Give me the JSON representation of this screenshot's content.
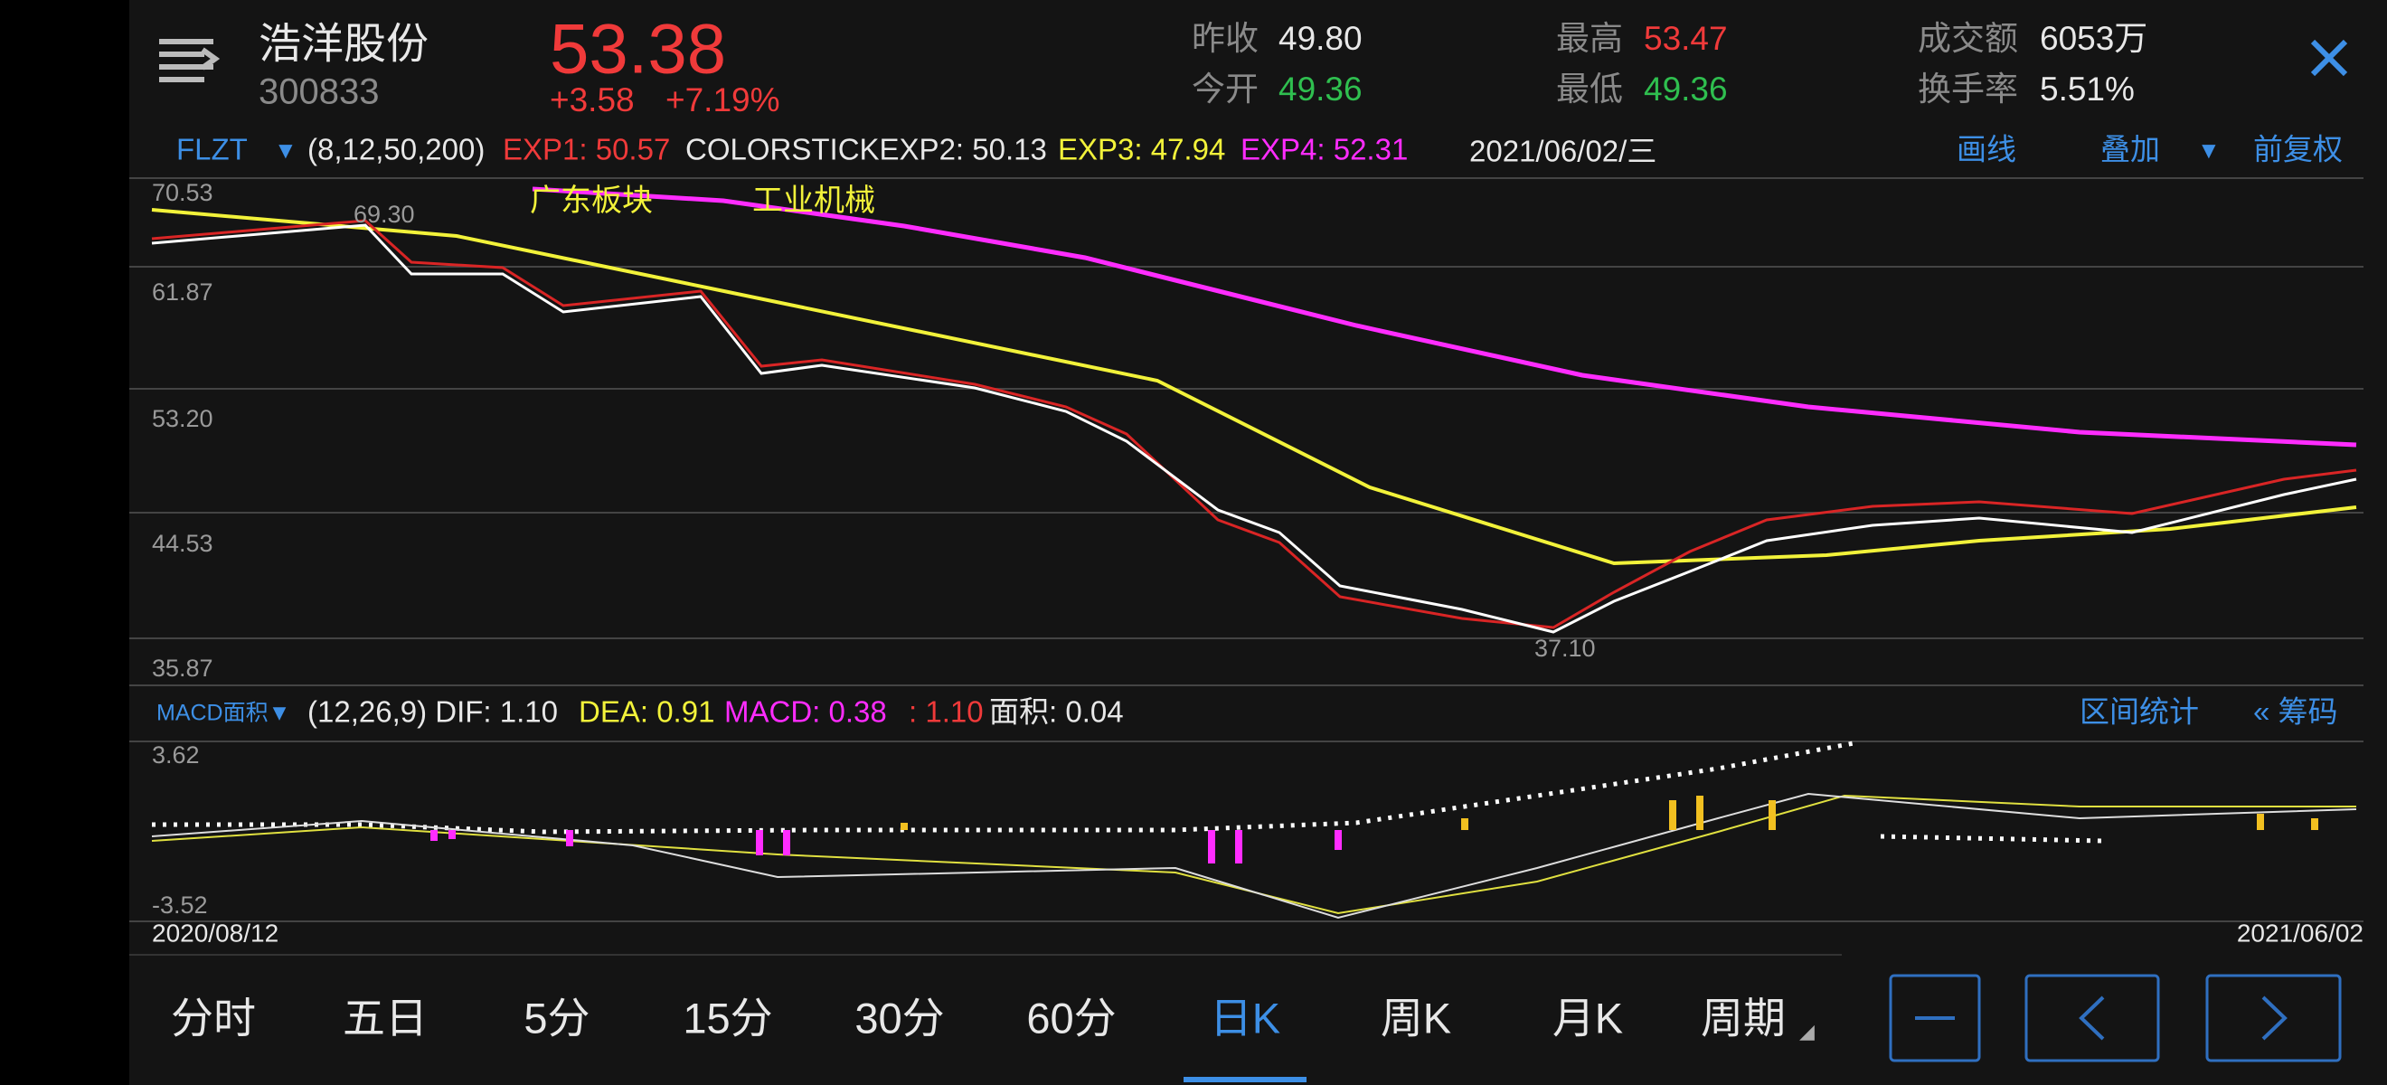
{
  "header": {
    "name": "浩洋股份",
    "code": "300833",
    "price": "53.38",
    "change": "+3.58",
    "change_pct": "+7.19%",
    "stats": [
      {
        "label": "昨收",
        "value": "49.80"
      },
      {
        "label": "今开",
        "value": "49.36"
      },
      {
        "label": "最高",
        "value": "53.47"
      },
      {
        "label": "最低",
        "value": "49.36"
      },
      {
        "label": "成交额",
        "value": "6053万"
      },
      {
        "label": "换手率",
        "value": "5.51%"
      }
    ]
  },
  "indicator_bar": {
    "name": "FLZT",
    "arrow": "▼",
    "params": "(8,12,50,200)",
    "exp1": "EXP1: 50.57",
    "exp2": "COLORSTICKEXP2: 50.13",
    "exp3": "EXP3: 47.94",
    "exp4": "EXP4: 52.31",
    "date": "2021/06/02/三",
    "draw": "画线",
    "overlay": "叠加",
    "overlay_arrow": "▼",
    "adjust": "前复权"
  },
  "price_chart": {
    "axis_labels": [
      "70.53",
      "61.87",
      "53.20",
      "44.53",
      "35.87"
    ],
    "tags": [
      "广东板块",
      "工业机械"
    ],
    "high": "69.30",
    "low": "37.10"
  },
  "macd_bar": {
    "name": "MACD面积▼",
    "params": "(12,26,9) DIF: 1.10",
    "dea": "DEA: 0.91",
    "macd": "MACD: 0.38",
    "extra": ": 1.10",
    "area": "面积: 0.04",
    "stats": "区间统计",
    "chips": "« 筹码"
  },
  "macd_chart": {
    "axis_labels": [
      "3.62",
      "-3.52"
    ]
  },
  "dates": {
    "start": "2020/08/12",
    "end": "2021/06/02"
  },
  "tabs": [
    "分时",
    "五日",
    "5分",
    "15分",
    "30分",
    "60分",
    "日K",
    "周K",
    "月K",
    "周期"
  ],
  "period_mark": "◢"
}
